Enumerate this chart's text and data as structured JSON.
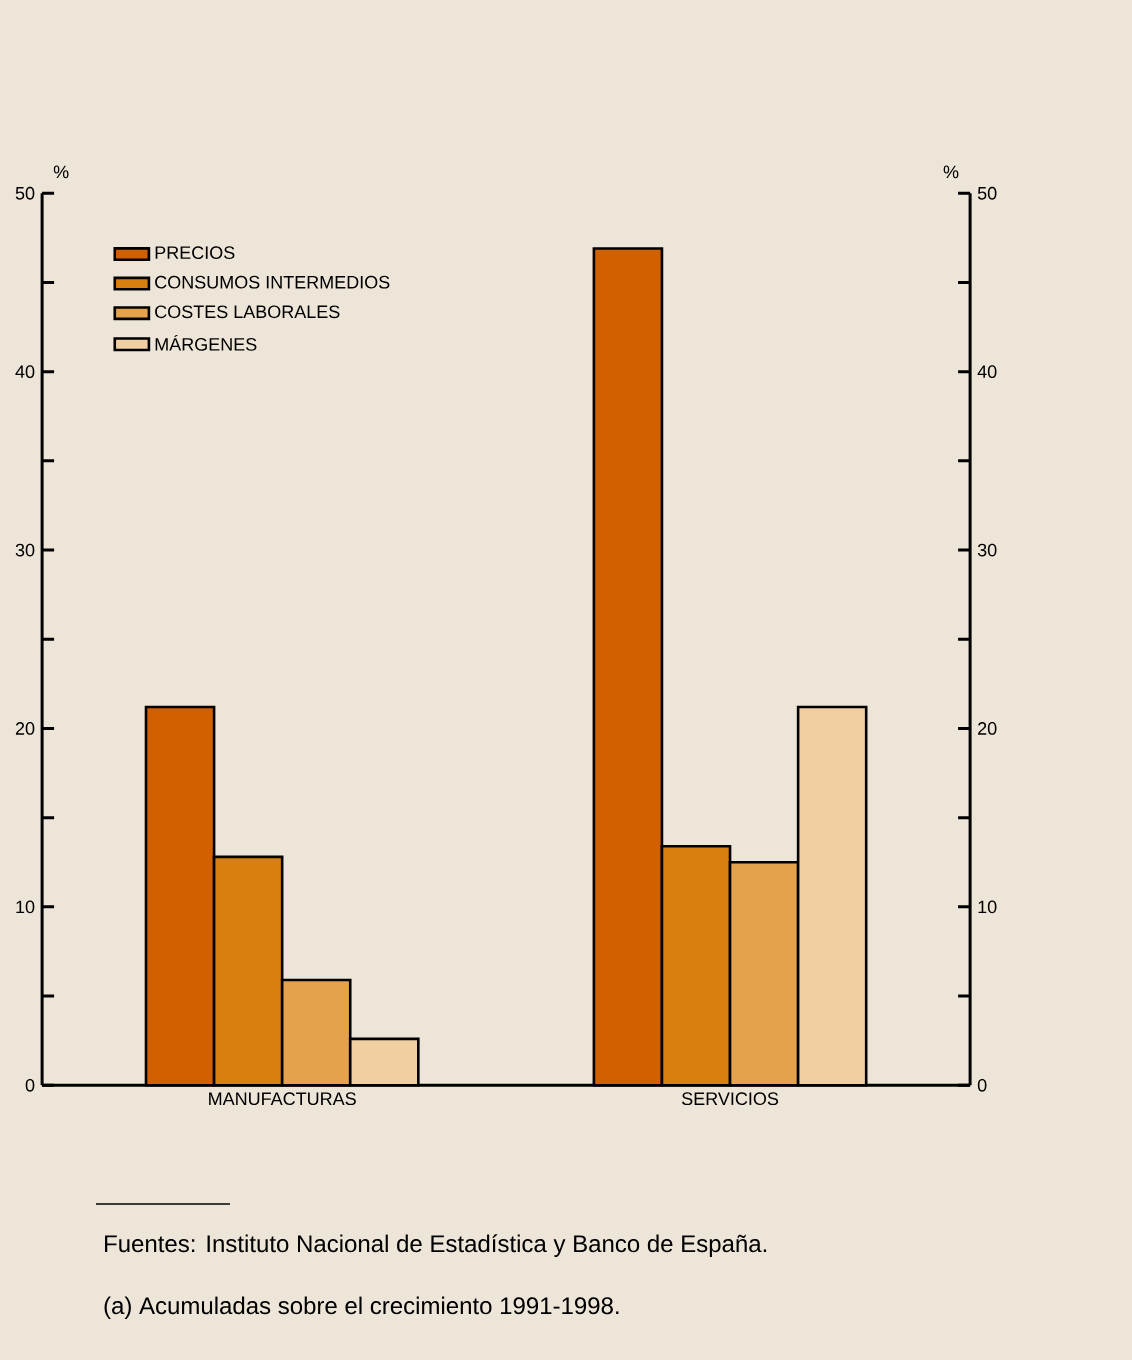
{
  "chart_data": {
    "type": "bar",
    "categories": [
      "MANUFACTURAS",
      "SERVICIOS"
    ],
    "series": [
      {
        "name": "PRECIOS",
        "color": "#d06000",
        "values": [
          21.2,
          46.9
        ]
      },
      {
        "name": "CONSUMOS INTERMEDIOS",
        "color": "#d8800f",
        "values": [
          12.8,
          13.4
        ]
      },
      {
        "name": "COSTES LABORALES",
        "color": "#e4a24c",
        "values": [
          5.9,
          12.5
        ]
      },
      {
        "name": "MÁRGENES",
        "color": "#f0d0a0",
        "values": [
          2.6,
          21.2
        ]
      }
    ],
    "ylabel": "%",
    "y2label": "%",
    "ylim": [
      0,
      50
    ],
    "yticks": [
      0,
      {
        "value": 5,
        "label": null
      },
      10,
      {
        "value": 15,
        "label": null
      },
      20,
      {
        "value": 25,
        "label": null
      },
      30,
      {
        "value": 35,
        "label": null
      },
      40,
      {
        "value": 45,
        "label": null
      },
      50
    ],
    "y2lim": [
      0,
      50
    ],
    "y2ticks": [
      0,
      {
        "value": 5,
        "label": null
      },
      10,
      {
        "value": 15,
        "label": null
      },
      20,
      {
        "value": 25,
        "label": null
      },
      30,
      {
        "value": 35,
        "label": null
      },
      40,
      {
        "value": 45,
        "label": null
      },
      50
    ],
    "legend": "top left",
    "grid": false,
    "annotations": [
      "Fuentes:  Instituto Nacional de Estadística y Banco de España.",
      "(a)    Acumuladas sobre el crecimiento 1991-1998."
    ]
  }
}
